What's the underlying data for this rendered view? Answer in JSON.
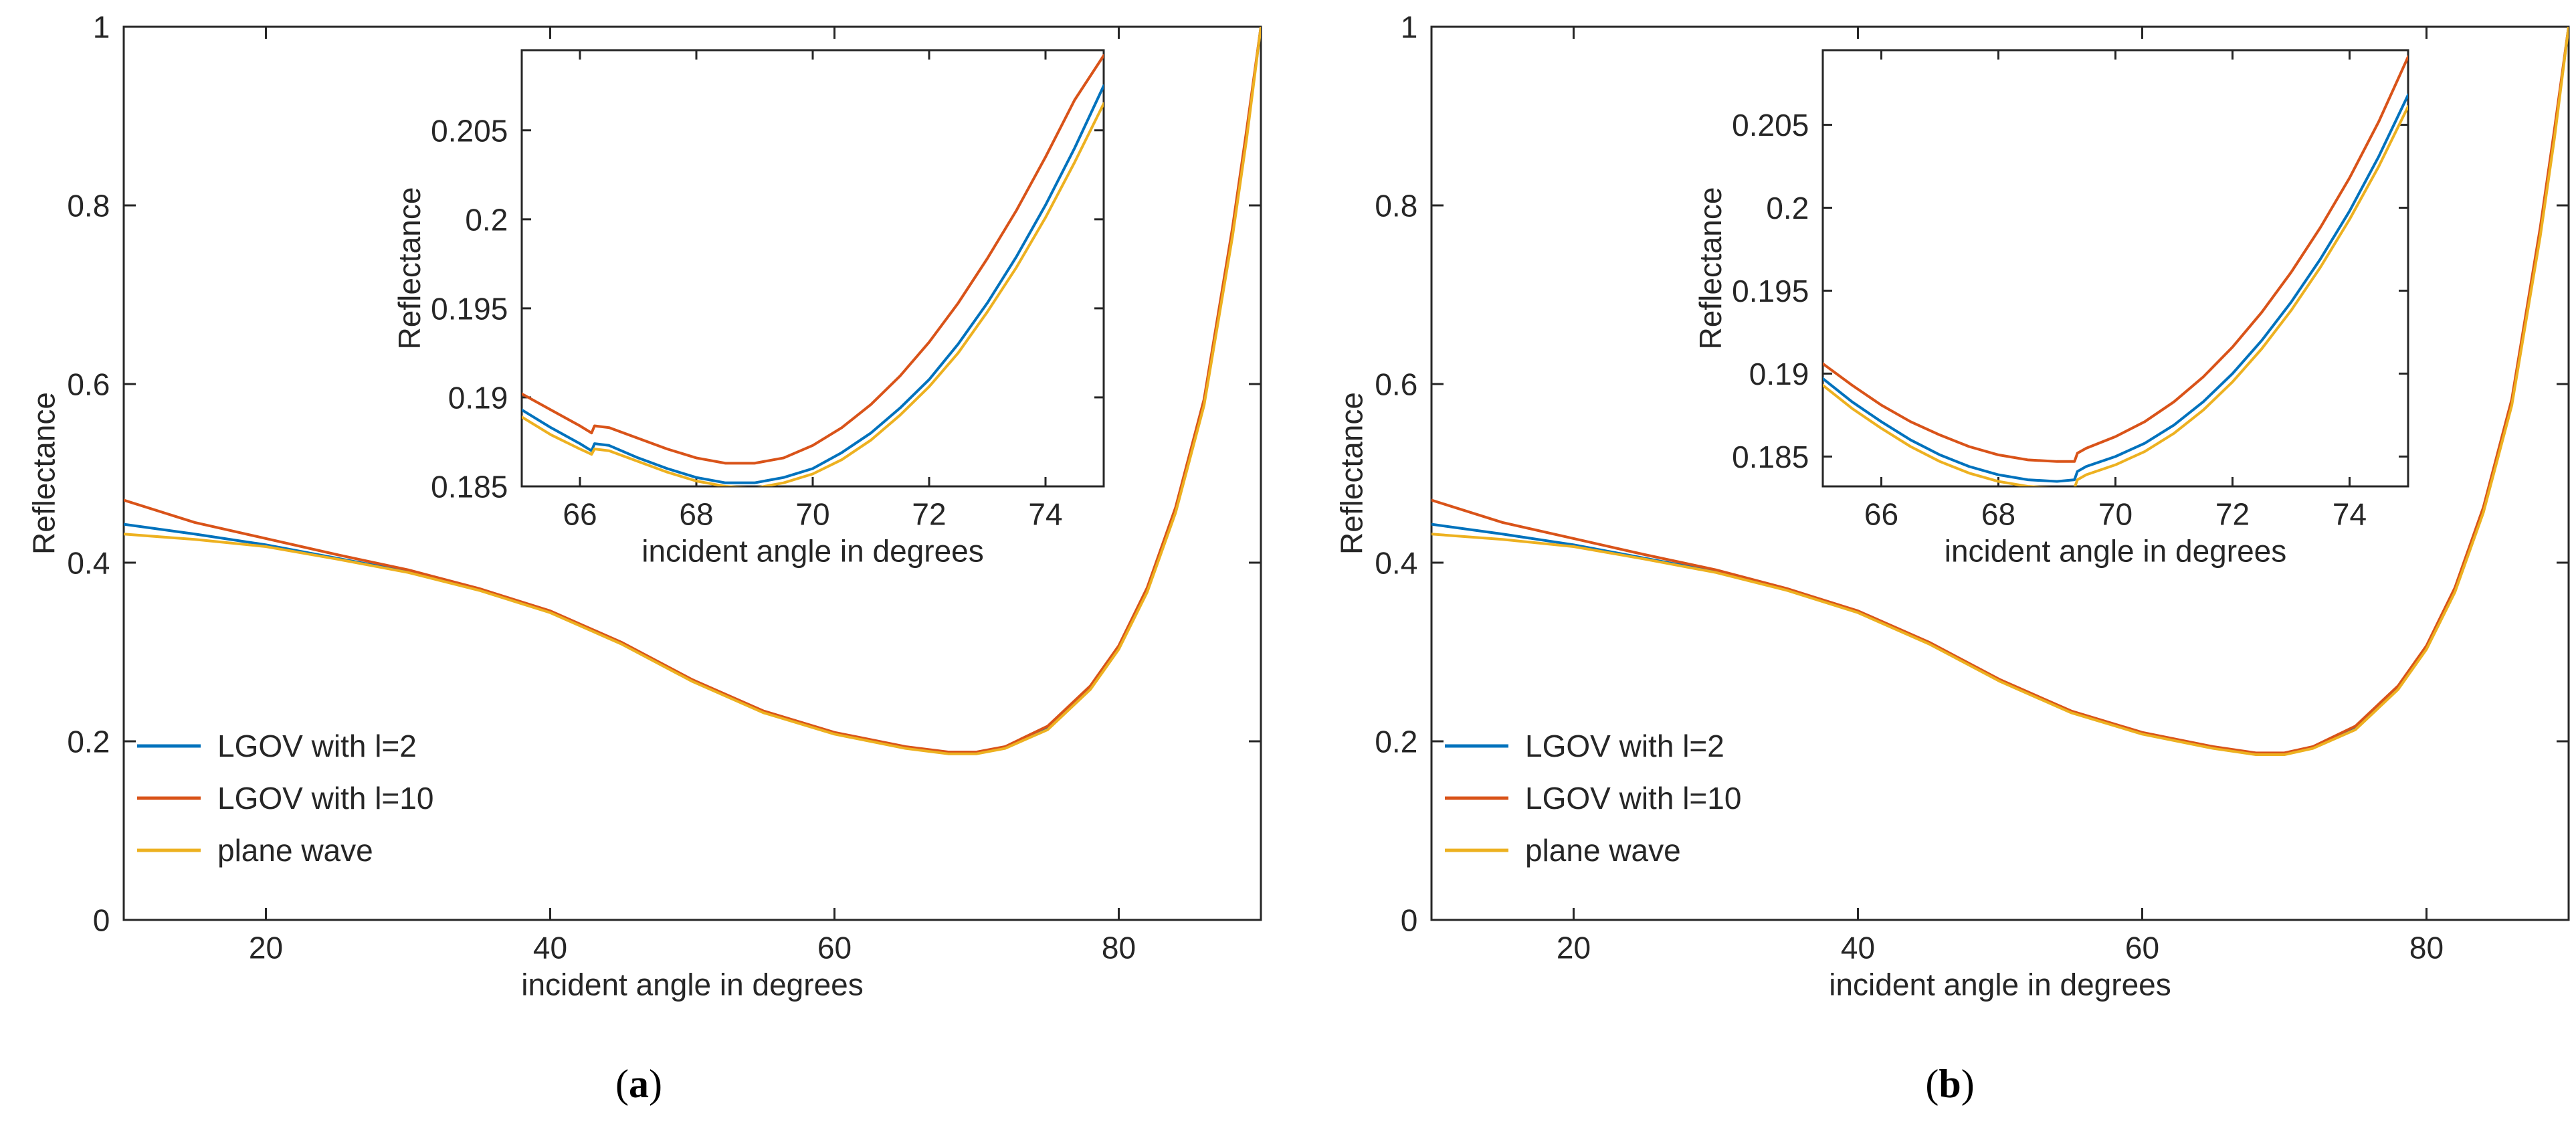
{
  "colors": {
    "lgov_l2": "#0072BD",
    "lgov_l10": "#D95319",
    "plane_wave": "#EDB120",
    "axis": "#262626",
    "background": "#ffffff"
  },
  "captions": [
    {
      "open": "(",
      "letter": "a",
      "close": ")"
    },
    {
      "open": "(",
      "letter": "b",
      "close": ")"
    }
  ],
  "chart_data": [
    {
      "panel": "a",
      "type": "line",
      "main": {
        "xlabel": "incident angle in degrees",
        "ylabel": "Reflectance",
        "xlim": [
          10,
          90
        ],
        "ylim": [
          0,
          1
        ],
        "xticks": [
          20,
          40,
          60,
          80
        ],
        "yticks": [
          0,
          0.2,
          0.4,
          0.6,
          0.8,
          1
        ],
        "ytick_labels": [
          "0",
          "0.2",
          "0.4",
          "0.6",
          "0.8",
          "1"
        ],
        "legend": {
          "placement": "bottom-left",
          "entries": [
            "LGOV with l=2",
            "LGOV with l=10",
            "plane wave"
          ]
        },
        "series": [
          {
            "name": "LGOV with l=2",
            "color_key": "lgov_l2",
            "x": [
              10,
              15,
              20,
              25,
              30,
              35,
              40,
              45,
              50,
              55,
              60,
              65,
              68,
              70,
              72,
              75,
              78,
              80,
              82,
              84,
              86,
              88,
              89,
              90
            ],
            "y": [
              0.443,
              0.432,
              0.42,
              0.405,
              0.39,
              0.37,
              0.345,
              0.31,
              0.268,
              0.233,
              0.209,
              0.193,
              0.187,
              0.187,
              0.193,
              0.215,
              0.26,
              0.305,
              0.37,
              0.46,
              0.58,
              0.77,
              0.88,
              1.0
            ]
          },
          {
            "name": "LGOV with l=10",
            "color_key": "lgov_l10",
            "x": [
              10,
              15,
              20,
              25,
              30,
              35,
              40,
              45,
              50,
              55,
              60,
              65,
              68,
              70,
              72,
              75,
              78,
              80,
              82,
              84,
              86,
              88,
              89,
              90
            ],
            "y": [
              0.47,
              0.445,
              0.427,
              0.409,
              0.392,
              0.371,
              0.346,
              0.311,
              0.269,
              0.234,
              0.21,
              0.194,
              0.188,
              0.188,
              0.194,
              0.217,
              0.262,
              0.307,
              0.372,
              0.462,
              0.583,
              0.775,
              0.885,
              1.0
            ]
          },
          {
            "name": "plane wave",
            "color_key": "plane_wave",
            "x": [
              10,
              15,
              20,
              25,
              30,
              35,
              40,
              45,
              50,
              55,
              60,
              65,
              68,
              70,
              72,
              75,
              78,
              80,
              82,
              84,
              86,
              88,
              89,
              90
            ],
            "y": [
              0.432,
              0.426,
              0.418,
              0.404,
              0.389,
              0.369,
              0.344,
              0.309,
              0.267,
              0.232,
              0.208,
              0.192,
              0.186,
              0.186,
              0.192,
              0.213,
              0.258,
              0.303,
              0.367,
              0.456,
              0.576,
              0.765,
              0.875,
              1.0
            ]
          }
        ]
      },
      "inset": {
        "xlabel": "incident angle in degrees",
        "ylabel": "Reflectance",
        "xlim": [
          65,
          75
        ],
        "ylim": [
          0.185,
          0.2095
        ],
        "xticks": [
          66,
          68,
          70,
          72,
          74
        ],
        "yticks": [
          0.185,
          0.19,
          0.195,
          0.2,
          0.205
        ],
        "ytick_labels": [
          "0.185",
          "0.19",
          "0.195",
          "0.2",
          "0.205"
        ],
        "series": [
          {
            "name": "LGOV with l=2",
            "color_key": "lgov_l2",
            "x": [
              65,
              65.5,
              66,
              66.2,
              66.25,
              66.5,
              67,
              67.5,
              68,
              68.5,
              69,
              69.5,
              70,
              70.5,
              71,
              71.5,
              72,
              72.5,
              73,
              73.5,
              74,
              74.5,
              75
            ],
            "y": [
              0.1893,
              0.1883,
              0.1874,
              0.187,
              0.1874,
              0.1873,
              0.1866,
              0.186,
              0.1855,
              0.1852,
              0.1852,
              0.1855,
              0.186,
              0.1869,
              0.188,
              0.1894,
              0.191,
              0.193,
              0.1953,
              0.1979,
              0.2008,
              0.204,
              0.2075
            ]
          },
          {
            "name": "LGOV with l=10",
            "color_key": "lgov_l10",
            "x": [
              65,
              65.5,
              66,
              66.2,
              66.25,
              66.5,
              67,
              67.5,
              68,
              68.5,
              69,
              69.5,
              70,
              70.5,
              71,
              71.5,
              72,
              72.5,
              73,
              73.5,
              74,
              74.5,
              75
            ],
            "y": [
              0.1902,
              0.1893,
              0.1884,
              0.188,
              0.1884,
              0.1883,
              0.1877,
              0.1871,
              0.1866,
              0.1863,
              0.1863,
              0.1866,
              0.1873,
              0.1883,
              0.1896,
              0.1912,
              0.1931,
              0.1953,
              0.1978,
              0.2005,
              0.2035,
              0.2067,
              0.2092
            ]
          },
          {
            "name": "plane wave",
            "color_key": "plane_wave",
            "x": [
              65,
              65.5,
              66,
              66.2,
              66.25,
              66.5,
              67,
              67.5,
              68,
              68.5,
              69,
              69.5,
              70,
              70.5,
              71,
              71.5,
              72,
              72.5,
              73,
              73.5,
              74,
              74.5,
              75
            ],
            "y": [
              0.1889,
              0.1879,
              0.1871,
              0.1868,
              0.1871,
              0.187,
              0.1864,
              0.1858,
              0.1853,
              0.185,
              0.1849,
              0.1852,
              0.1857,
              0.1865,
              0.1876,
              0.189,
              0.1906,
              0.1925,
              0.1948,
              0.1973,
              0.2001,
              0.2032,
              0.2065
            ]
          }
        ]
      }
    },
    {
      "panel": "b",
      "type": "line",
      "main": {
        "xlabel": "incident angle in degrees",
        "ylabel": "Reflectance",
        "xlim": [
          10,
          90
        ],
        "ylim": [
          0,
          1
        ],
        "xticks": [
          20,
          40,
          60,
          80
        ],
        "yticks": [
          0,
          0.2,
          0.4,
          0.6,
          0.8,
          1
        ],
        "ytick_labels": [
          "0",
          "0.2",
          "0.4",
          "0.6",
          "0.8",
          "1"
        ],
        "legend": {
          "placement": "bottom-left",
          "entries": [
            "LGOV with l=2",
            "LGOV with l=10",
            "plane wave"
          ]
        },
        "series": [
          {
            "name": "LGOV with l=2",
            "color_key": "lgov_l2",
            "x": [
              10,
              15,
              20,
              25,
              30,
              35,
              40,
              45,
              50,
              55,
              60,
              65,
              68,
              70,
              72,
              75,
              78,
              80,
              82,
              84,
              86,
              88,
              89,
              90
            ],
            "y": [
              0.443,
              0.432,
              0.42,
              0.405,
              0.39,
              0.37,
              0.345,
              0.31,
              0.268,
              0.233,
              0.209,
              0.193,
              0.186,
              0.186,
              0.193,
              0.215,
              0.26,
              0.305,
              0.37,
              0.46,
              0.58,
              0.77,
              0.88,
              1.0
            ]
          },
          {
            "name": "LGOV with l=10",
            "color_key": "lgov_l10",
            "x": [
              10,
              15,
              20,
              25,
              30,
              35,
              40,
              45,
              50,
              55,
              60,
              65,
              68,
              70,
              72,
              75,
              78,
              80,
              82,
              84,
              86,
              88,
              89,
              90
            ],
            "y": [
              0.47,
              0.445,
              0.427,
              0.409,
              0.392,
              0.371,
              0.346,
              0.311,
              0.269,
              0.234,
              0.21,
              0.194,
              0.187,
              0.187,
              0.194,
              0.217,
              0.262,
              0.307,
              0.372,
              0.462,
              0.583,
              0.775,
              0.885,
              1.0
            ]
          },
          {
            "name": "plane wave",
            "color_key": "plane_wave",
            "x": [
              10,
              15,
              20,
              25,
              30,
              35,
              40,
              45,
              50,
              55,
              60,
              65,
              68,
              70,
              72,
              75,
              78,
              80,
              82,
              84,
              86,
              88,
              89,
              90
            ],
            "y": [
              0.432,
              0.426,
              0.418,
              0.404,
              0.389,
              0.369,
              0.344,
              0.309,
              0.267,
              0.232,
              0.208,
              0.192,
              0.185,
              0.185,
              0.192,
              0.213,
              0.258,
              0.303,
              0.367,
              0.456,
              0.576,
              0.765,
              0.875,
              1.0
            ]
          }
        ]
      },
      "inset": {
        "xlabel": "incident angle in degrees",
        "ylabel": "Reflectance",
        "xlim": [
          65,
          75
        ],
        "ylim": [
          0.1832,
          0.2095
        ],
        "xticks": [
          66,
          68,
          70,
          72,
          74
        ],
        "yticks": [
          0.185,
          0.19,
          0.195,
          0.2,
          0.205
        ],
        "ytick_labels": [
          "0.185",
          "0.19",
          "0.195",
          "0.2",
          "0.205"
        ],
        "series": [
          {
            "name": "LGOV with l=2",
            "color_key": "lgov_l2",
            "x": [
              65,
              65.5,
              66,
              66.5,
              67,
              67.5,
              68,
              68.5,
              69,
              69.3,
              69.35,
              69.5,
              70,
              70.5,
              71,
              71.5,
              72,
              72.5,
              73,
              73.5,
              74,
              74.5,
              75
            ],
            "y": [
              0.1897,
              0.1883,
              0.1871,
              0.186,
              0.1851,
              0.1844,
              0.1839,
              0.1836,
              0.1835,
              0.1836,
              0.1841,
              0.1844,
              0.185,
              0.1858,
              0.1869,
              0.1883,
              0.19,
              0.192,
              0.1943,
              0.1969,
              0.1998,
              0.2031,
              0.2068
            ]
          },
          {
            "name": "LGOV with l=10",
            "color_key": "lgov_l10",
            "x": [
              65,
              65.5,
              66,
              66.5,
              67,
              67.5,
              68,
              68.5,
              69,
              69.3,
              69.35,
              69.5,
              70,
              70.5,
              71,
              71.5,
              72,
              72.5,
              73,
              73.5,
              74,
              74.5,
              75
            ],
            "y": [
              0.1906,
              0.1893,
              0.1881,
              0.1871,
              0.1863,
              0.1856,
              0.1851,
              0.1848,
              0.1847,
              0.1847,
              0.1852,
              0.1855,
              0.1862,
              0.1871,
              0.1883,
              0.1898,
              0.1916,
              0.1937,
              0.1961,
              0.1988,
              0.2018,
              0.2052,
              0.2091
            ]
          },
          {
            "name": "plane wave",
            "color_key": "plane_wave",
            "x": [
              65,
              65.5,
              66,
              66.5,
              67,
              67.5,
              68,
              68.5,
              69,
              69.3,
              69.35,
              69.5,
              70,
              70.5,
              71,
              71.5,
              72,
              72.5,
              73,
              73.5,
              74,
              74.5,
              75
            ],
            "y": [
              0.1893,
              0.1879,
              0.1867,
              0.1856,
              0.1847,
              0.184,
              0.1835,
              0.1832,
              0.1831,
              0.1831,
              0.1836,
              0.1839,
              0.1845,
              0.1853,
              0.1864,
              0.1878,
              0.1895,
              0.1915,
              0.1938,
              0.1964,
              0.1993,
              0.2025,
              0.2061
            ]
          }
        ]
      }
    }
  ]
}
